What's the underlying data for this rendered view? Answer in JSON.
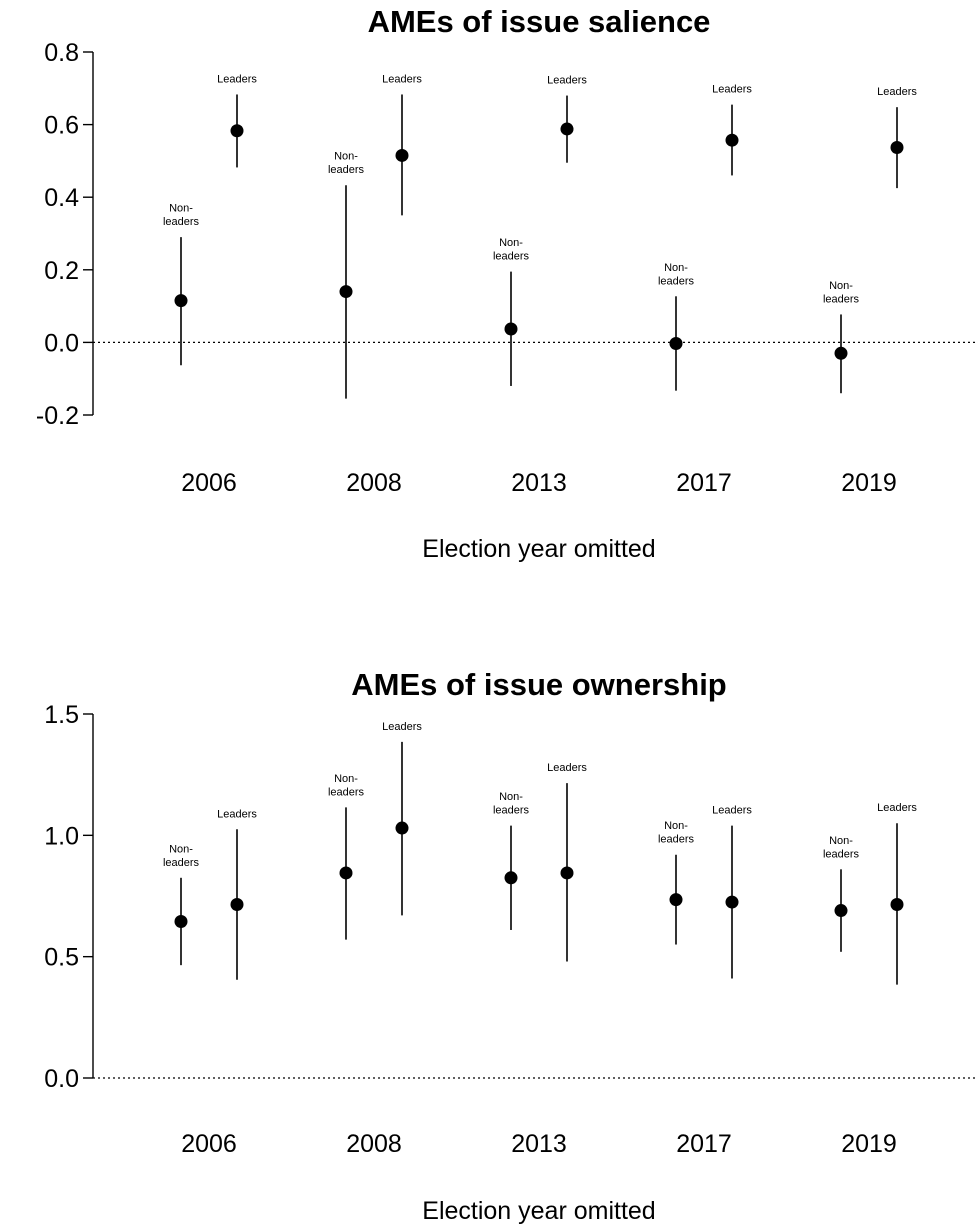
{
  "chart_data": [
    {
      "type": "scatter",
      "title": "AMEs of issue salience",
      "xlabel": "Election year omitted",
      "ylabel": "",
      "categories": [
        "2006",
        "2008",
        "2013",
        "2017",
        "2019"
      ],
      "ylim": [
        -0.2,
        0.8
      ],
      "yticks": [
        "-0.2",
        "0.0",
        "0.2",
        "0.4",
        "0.6",
        "0.8"
      ],
      "reference_line": 0,
      "group_labels": {
        "non_leaders": [
          "Non-",
          "leaders"
        ],
        "leaders": [
          "Leaders"
        ]
      },
      "series": [
        {
          "name": "Non-leaders",
          "values": [
            0.115,
            0.14,
            0.037,
            -0.003,
            -0.03
          ],
          "lower": [
            -0.063,
            -0.155,
            -0.12,
            -0.133,
            -0.14
          ],
          "upper": [
            0.29,
            0.433,
            0.195,
            0.127,
            0.077
          ]
        },
        {
          "name": "Leaders",
          "values": [
            0.583,
            0.515,
            0.588,
            0.557,
            0.537
          ],
          "lower": [
            0.482,
            0.35,
            0.495,
            0.46,
            0.425
          ],
          "upper": [
            0.683,
            0.683,
            0.68,
            0.655,
            0.648
          ]
        }
      ]
    },
    {
      "type": "scatter",
      "title": "AMEs of issue ownership",
      "xlabel": "Election year omitted",
      "ylabel": "",
      "categories": [
        "2006",
        "2008",
        "2013",
        "2017",
        "2019"
      ],
      "ylim": [
        0.0,
        1.5
      ],
      "yticks": [
        "0.0",
        "0.5",
        "1.0",
        "1.5"
      ],
      "reference_line": 0,
      "group_labels": {
        "non_leaders": [
          "Non-",
          "leaders"
        ],
        "leaders": [
          "Leaders"
        ]
      },
      "series": [
        {
          "name": "Non-leaders",
          "values": [
            0.645,
            0.845,
            0.825,
            0.735,
            0.69
          ],
          "lower": [
            0.465,
            0.57,
            0.61,
            0.55,
            0.52
          ],
          "upper": [
            0.825,
            1.115,
            1.04,
            0.92,
            0.86
          ]
        },
        {
          "name": "Leaders",
          "values": [
            0.715,
            1.03,
            0.845,
            0.725,
            0.715
          ],
          "lower": [
            0.405,
            0.67,
            0.48,
            0.41,
            0.385
          ],
          "upper": [
            1.025,
            1.385,
            1.215,
            1.04,
            1.05
          ]
        }
      ]
    }
  ]
}
